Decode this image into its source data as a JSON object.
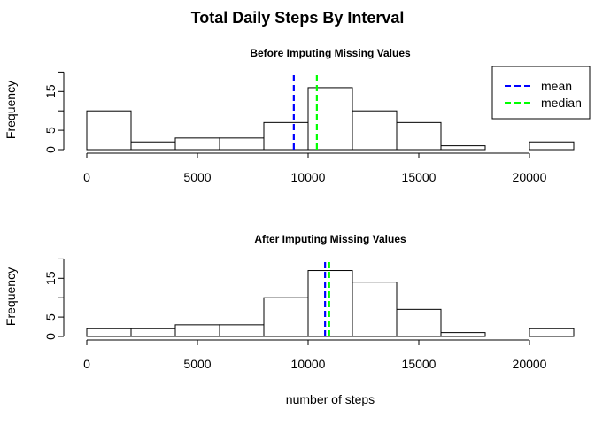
{
  "title": "Total Daily Steps By Interval",
  "xlabel": "number of steps",
  "chart_data": [
    {
      "type": "histogram",
      "title": "Before Imputing Missing Values",
      "ylabel": "Frequency",
      "bin_edges": [
        0,
        2000,
        4000,
        6000,
        8000,
        10000,
        12000,
        14000,
        16000,
        18000,
        20000,
        22000
      ],
      "counts": [
        10,
        2,
        3,
        3,
        7,
        16,
        10,
        7,
        1,
        0,
        2
      ],
      "xticks": [
        0,
        5000,
        10000,
        15000,
        20000
      ],
      "yticks": [
        0,
        5,
        15
      ],
      "ylim": [
        0,
        20
      ],
      "mean": 9354,
      "median": 10395,
      "legend": {
        "position": "top-right",
        "entries": [
          "mean",
          "median"
        ]
      }
    },
    {
      "type": "histogram",
      "title": "After Imputing Missing Values",
      "ylabel": "Frequency",
      "bin_edges": [
        0,
        2000,
        4000,
        6000,
        8000,
        10000,
        12000,
        14000,
        16000,
        18000,
        20000,
        22000
      ],
      "counts": [
        2,
        2,
        3,
        3,
        10,
        17,
        14,
        7,
        1,
        0,
        2
      ],
      "xticks": [
        0,
        5000,
        10000,
        15000,
        20000
      ],
      "yticks": [
        0,
        5,
        15
      ],
      "ylim": [
        0,
        20
      ],
      "mean": 10766,
      "median": 10952
    }
  ],
  "colors": {
    "mean": "#0000FF",
    "median": "#00FF00"
  }
}
